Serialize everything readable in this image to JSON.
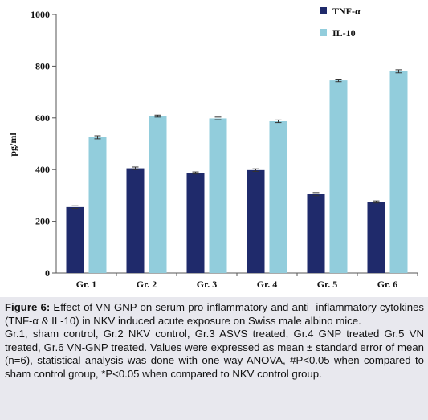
{
  "chart_data": {
    "type": "bar",
    "categories": [
      "Gr. 1",
      "Gr. 2",
      "Gr. 3",
      "Gr. 4",
      "Gr. 5",
      "Gr. 6"
    ],
    "series": [
      {
        "name": "TNF-α",
        "color": "#1f2a6b",
        "values": [
          255,
          405,
          387,
          398,
          305,
          275
        ],
        "errors": [
          5,
          5,
          4,
          5,
          6,
          4
        ]
      },
      {
        "name": "IL-10",
        "color": "#92cddc",
        "values": [
          525,
          607,
          598,
          587,
          745,
          780
        ],
        "errors": [
          6,
          4,
          5,
          5,
          5,
          6
        ]
      }
    ],
    "ylabel": "pg/ml",
    "ylim": [
      0,
      1000
    ],
    "yticks": [
      0,
      200,
      400,
      600,
      800,
      1000
    ],
    "legend_position": "top-right",
    "grid": false
  },
  "caption": {
    "title": "Figure 6:",
    "line1": " Effect of VN-GNP on serum pro-inflammatory and anti- inflammatory cytokines (TNF-α & IL-10) in NKV induced acute exposure on Swiss male albino mice.",
    "line2": "Gr.1, sham control, Gr.2 NKV control, Gr.3 ASVS treated, Gr.4 GNP treated Gr.5 VN treated, Gr.6 VN-GNP treated. Values were expressed as mean ± standard error of mean (n=6), statistical analysis was done with one way ANOVA, #P<0.05 when compared to sham control group, *P<0.05 when compared to NKV control group."
  }
}
